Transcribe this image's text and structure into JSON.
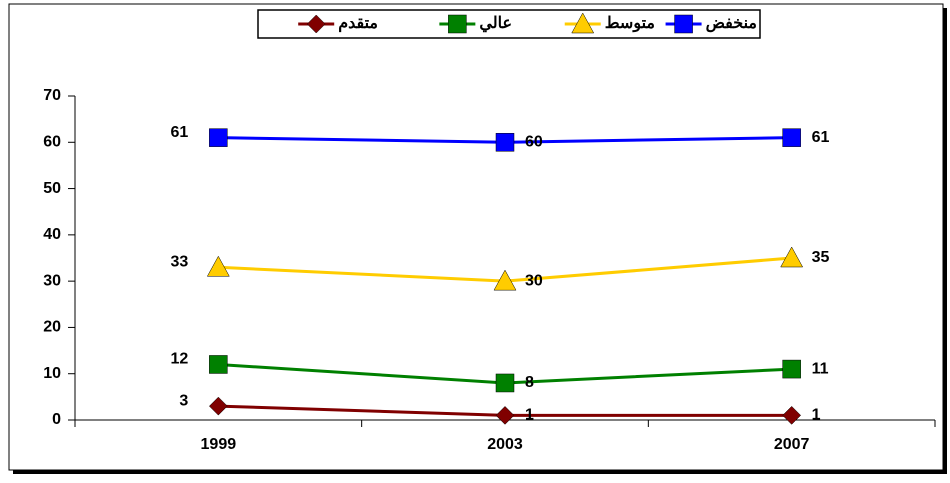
{
  "chart_data": {
    "type": "line",
    "categories": [
      "1999",
      "2003",
      "2007"
    ],
    "series": [
      {
        "name": "منخفض",
        "color": "#0000ff",
        "marker": "square",
        "values": [
          61,
          60,
          61
        ]
      },
      {
        "name": "متوسط",
        "color": "#ffcc00",
        "marker": "triangle",
        "values": [
          33,
          30,
          35
        ]
      },
      {
        "name": "عالي",
        "color": "#008000",
        "marker": "square",
        "values": [
          12,
          8,
          11
        ]
      },
      {
        "name": "متقدم",
        "color": "#800000",
        "marker": "diamond",
        "values": [
          3,
          1,
          1
        ]
      }
    ],
    "ylim": [
      0,
      70
    ],
    "yticks": [
      0,
      10,
      20,
      30,
      40,
      50,
      60,
      70
    ],
    "grid": false,
    "legend": "top"
  }
}
